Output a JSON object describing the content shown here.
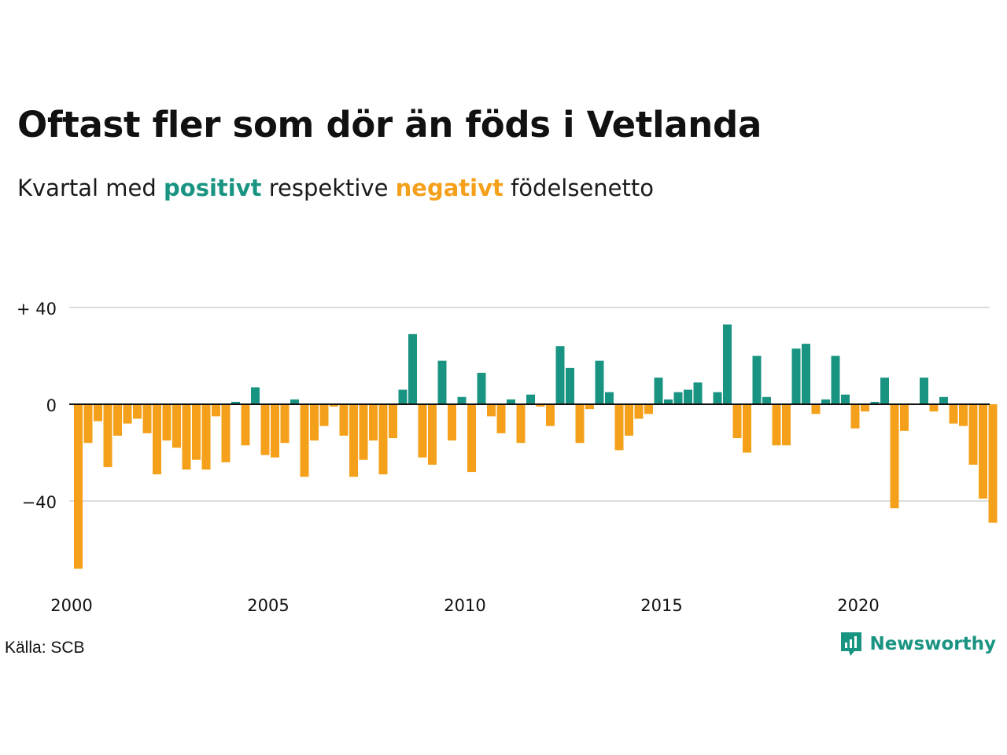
{
  "title": "Oftast fler som dör än föds i Vetlanda",
  "subtitle": {
    "prefix": "Kvartal med",
    "positive": "positivt",
    "middle": "respektive",
    "negative": "negativt",
    "suffix": "födelsenetto"
  },
  "source": "Källa: SCB",
  "brand": {
    "name": "Newsworthy",
    "logo": "newsworthy-logo-icon"
  },
  "colors": {
    "positive": "#1a9482",
    "negative": "#f5a01a",
    "grid": "#dddddd",
    "axis": "#111111"
  },
  "chart_data": {
    "type": "bar",
    "title": "Oftast fler som dör än föds i Vetlanda",
    "subtitle": "Kvartal med positivt respektive negativt födelsenetto",
    "xlabel": "",
    "ylabel": "",
    "ylim": [
      -70,
      42
    ],
    "yticks": [
      {
        "value": 40,
        "label": "+ 40"
      },
      {
        "value": 0,
        "label": "0"
      },
      {
        "value": -40,
        "label": "−40"
      }
    ],
    "xticks": [
      "2000",
      "2005",
      "2010",
      "2015",
      "2020"
    ],
    "grid": true,
    "start": "2000 Q1",
    "frequency": "quarterly",
    "categories": [
      "2000 Q1",
      "2000 Q2",
      "2000 Q3",
      "2000 Q4",
      "2001 Q1",
      "2001 Q2",
      "2001 Q3",
      "2001 Q4",
      "2002 Q1",
      "2002 Q2",
      "2002 Q3",
      "2002 Q4",
      "2003 Q1",
      "2003 Q2",
      "2003 Q3",
      "2003 Q4",
      "2004 Q1",
      "2004 Q2",
      "2004 Q3",
      "2004 Q4",
      "2005 Q1",
      "2005 Q2",
      "2005 Q3",
      "2005 Q4",
      "2006 Q1",
      "2006 Q2",
      "2006 Q3",
      "2006 Q4",
      "2007 Q1",
      "2007 Q2",
      "2007 Q3",
      "2007 Q4",
      "2008 Q1",
      "2008 Q2",
      "2008 Q3",
      "2008 Q4",
      "2009 Q1",
      "2009 Q2",
      "2009 Q3",
      "2009 Q4",
      "2010 Q1",
      "2010 Q2",
      "2010 Q3",
      "2010 Q4",
      "2011 Q1",
      "2011 Q2",
      "2011 Q3",
      "2011 Q4",
      "2012 Q1",
      "2012 Q2",
      "2012 Q3",
      "2012 Q4",
      "2013 Q1",
      "2013 Q2",
      "2013 Q3",
      "2013 Q4",
      "2014 Q1",
      "2014 Q2",
      "2014 Q3",
      "2014 Q4",
      "2015 Q1",
      "2015 Q2",
      "2015 Q3",
      "2015 Q4",
      "2016 Q1",
      "2016 Q2",
      "2016 Q3",
      "2016 Q4",
      "2017 Q1",
      "2017 Q2",
      "2017 Q3",
      "2017 Q4",
      "2018 Q1",
      "2018 Q2",
      "2018 Q3",
      "2018 Q4",
      "2019 Q1",
      "2019 Q2",
      "2019 Q3",
      "2019 Q4",
      "2020 Q1",
      "2020 Q2",
      "2020 Q3",
      "2020 Q4",
      "2021 Q1",
      "2021 Q2",
      "2021 Q3",
      "2021 Q4",
      "2022 Q1",
      "2022 Q2",
      "2022 Q3",
      "2022 Q4",
      "2023 Q1",
      "2023 Q2",
      "2023 Q3",
      "2023 Q4"
    ],
    "values": [
      -68,
      -16,
      -7,
      -26,
      -13,
      -8,
      -6,
      -12,
      -29,
      -15,
      -18,
      -27,
      -23,
      -27,
      -5,
      -24,
      1,
      -17,
      7,
      -21,
      -22,
      -16,
      2,
      -30,
      -15,
      -9,
      -1,
      -13,
      -30,
      -23,
      -15,
      -29,
      -14,
      6,
      29,
      -22,
      -25,
      18,
      -15,
      3,
      -28,
      13,
      -5,
      -12,
      2,
      -16,
      4,
      -1,
      -9,
      24,
      15,
      -16,
      -2,
      18,
      5,
      -19,
      -13,
      -6,
      -4,
      11,
      2,
      5,
      6,
      9,
      0,
      5,
      33,
      -14,
      -20,
      20,
      3,
      -17,
      -17,
      23,
      25,
      -4,
      2,
      20,
      4,
      -10,
      -3,
      1,
      11,
      -43,
      -11,
      0,
      11,
      -3,
      3,
      -8,
      -9,
      -25,
      -39,
      -49,
      0,
      0
    ]
  }
}
